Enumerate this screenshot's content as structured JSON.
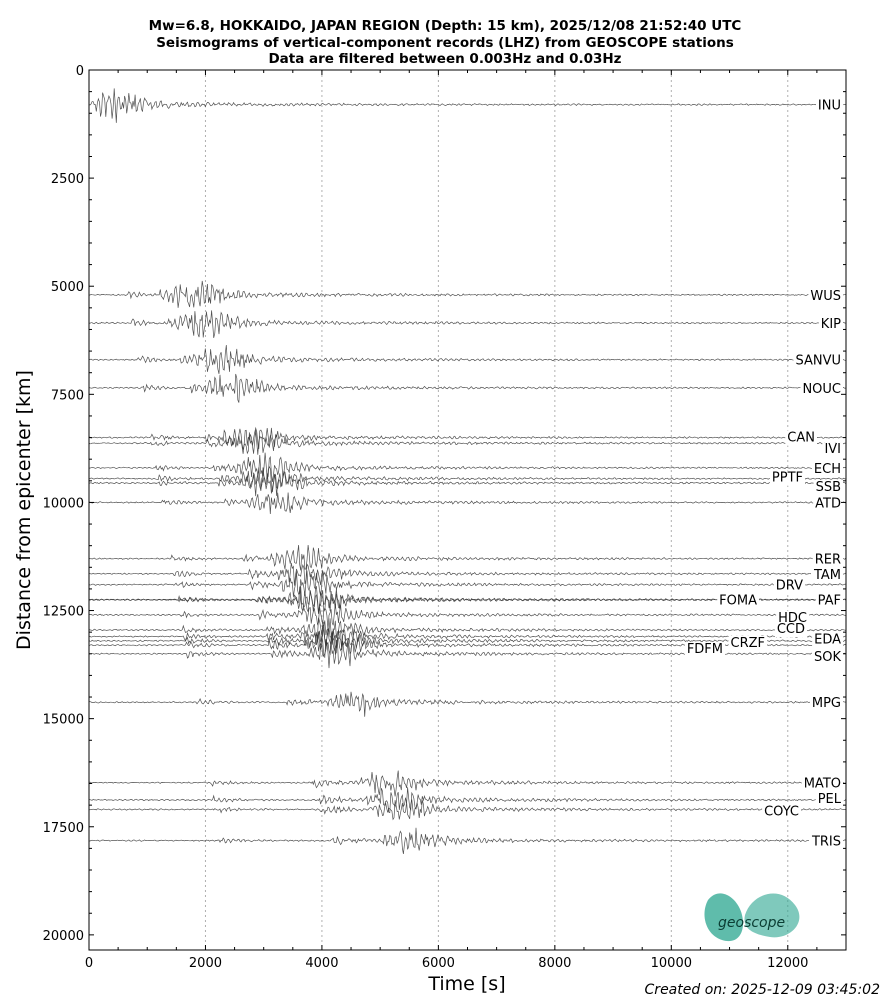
{
  "title_lines": [
    "Mw=6.8, HOKKAIDO, JAPAN REGION (Depth: 15 km), 2025/12/08 21:52:40 UTC",
    "Seismograms of vertical-component records (LHZ) from GEOSCOPE stations",
    "Data are filtered between 0.003Hz and 0.03Hz"
  ],
  "footer": "Created on: 2025-12-09 03:45:02",
  "logo_text": "geoscope",
  "colors": {
    "trace": "#333333",
    "grid": "#b0b0b0",
    "logo": "#2aa58f"
  },
  "chart_data": {
    "type": "line",
    "title": "Mw=6.8, HOKKAIDO, JAPAN REGION (Depth: 15 km), 2025/12/08 21:52:40 UTC",
    "xlabel": "Time [s]",
    "ylabel": "Distance from epicenter [km]",
    "xlim": [
      0,
      13000
    ],
    "ylim": [
      20350,
      0
    ],
    "y_inverted": true,
    "x_ticks": [
      0,
      2000,
      4000,
      6000,
      8000,
      10000,
      12000
    ],
    "y_ticks": [
      0,
      2500,
      5000,
      7500,
      10000,
      12500,
      15000,
      17500,
      20000
    ],
    "grid": "vertical dotted at x ticks",
    "series": [
      {
        "name": "INU",
        "distance": 800
      },
      {
        "name": "WUS",
        "distance": 5200
      },
      {
        "name": "KIP",
        "distance": 5850
      },
      {
        "name": "SANVU",
        "distance": 6700
      },
      {
        "name": "NOUC",
        "distance": 7350
      },
      {
        "name": "CAN",
        "distance": 8500
      },
      {
        "name": "IVI",
        "distance": 8630
      },
      {
        "name": "ECH",
        "distance": 9200
      },
      {
        "name": "PPTF",
        "distance": 9450
      },
      {
        "name": "SSB",
        "distance": 9550
      },
      {
        "name": "ATD",
        "distance": 10000
      },
      {
        "name": "RER",
        "distance": 11300
      },
      {
        "name": "TAM",
        "distance": 11650
      },
      {
        "name": "DRV",
        "distance": 11900
      },
      {
        "name": "FOMA",
        "distance": 12250
      },
      {
        "name": "PAF",
        "distance": 12250
      },
      {
        "name": "HDC",
        "distance": 12600
      },
      {
        "name": "CCD",
        "distance": 12950
      },
      {
        "name": "EDA",
        "distance": 13100
      },
      {
        "name": "CRZF",
        "distance": 13200
      },
      {
        "name": "FDFM",
        "distance": 13300
      },
      {
        "name": "SOK",
        "distance": 13500
      },
      {
        "name": "MPG",
        "distance": 14620
      },
      {
        "name": "MATO",
        "distance": 16480
      },
      {
        "name": "PEL",
        "distance": 16880
      },
      {
        "name": "COYC",
        "distance": 17100
      },
      {
        "name": "TRIS",
        "distance": 17820
      }
    ]
  }
}
